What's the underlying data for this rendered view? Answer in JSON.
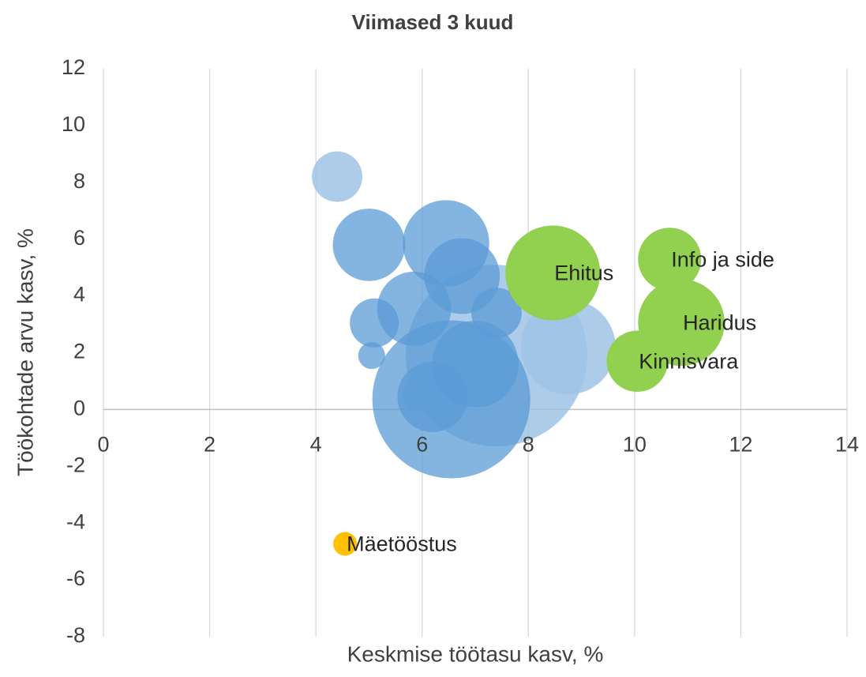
{
  "chart_data": {
    "type": "bubble",
    "title": "Viimased 3 kuud",
    "xlabel": "Keskmise töötasu kasv, %",
    "ylabel": "Töökohtade arvu kasv, %",
    "xlim": [
      0,
      14
    ],
    "xticks": [
      0,
      2,
      4,
      6,
      8,
      10,
      12,
      14
    ],
    "ylim": [
      -8,
      12
    ],
    "yticks": [
      -8,
      -6,
      -4,
      -2,
      0,
      2,
      4,
      6,
      8,
      10,
      12
    ],
    "grid": true,
    "series": [
      {
        "color": "#9dc3e6",
        "opacity": 0.85,
        "x": [
          7.4,
          8.75,
          4.4,
          5.9
        ],
        "values": [
          1.9,
          2.2,
          8.2,
          0.5
        ],
        "sizes": [
          132,
          36,
          10.2,
          3.2
        ]
      },
      {
        "color": "#5b9bd5",
        "opacity": 0.75,
        "x": [
          6.55,
          5.0,
          6.45,
          6.75,
          5.85,
          7.4,
          5.1,
          5.05,
          7.0,
          6.2
        ],
        "values": [
          0.36,
          5.8,
          5.85,
          4.7,
          3.55,
          3.4,
          3.05,
          1.9,
          1.6,
          0.45
        ],
        "sizes": [
          100,
          21,
          30,
          23,
          22,
          10.2,
          9.6,
          2.9,
          30,
          20
        ]
      },
      {
        "color": "#92d050",
        "opacity": 1,
        "x": [
          8.46,
          10.66,
          10.88,
          10.05
        ],
        "values": [
          4.81,
          5.29,
          3.06,
          1.7
        ],
        "sizes": [
          36,
          16,
          30,
          15
        ],
        "labels": [
          "Ehitus",
          "Info ja side",
          "Haridus",
          "Kinnisvara"
        ]
      },
      {
        "color": "#ffc000",
        "opacity": 1,
        "x": [
          4.55
        ],
        "values": [
          -4.73
        ],
        "sizes": [
          2.25
        ],
        "labels": [
          "Mäetööstus"
        ]
      }
    ]
  }
}
